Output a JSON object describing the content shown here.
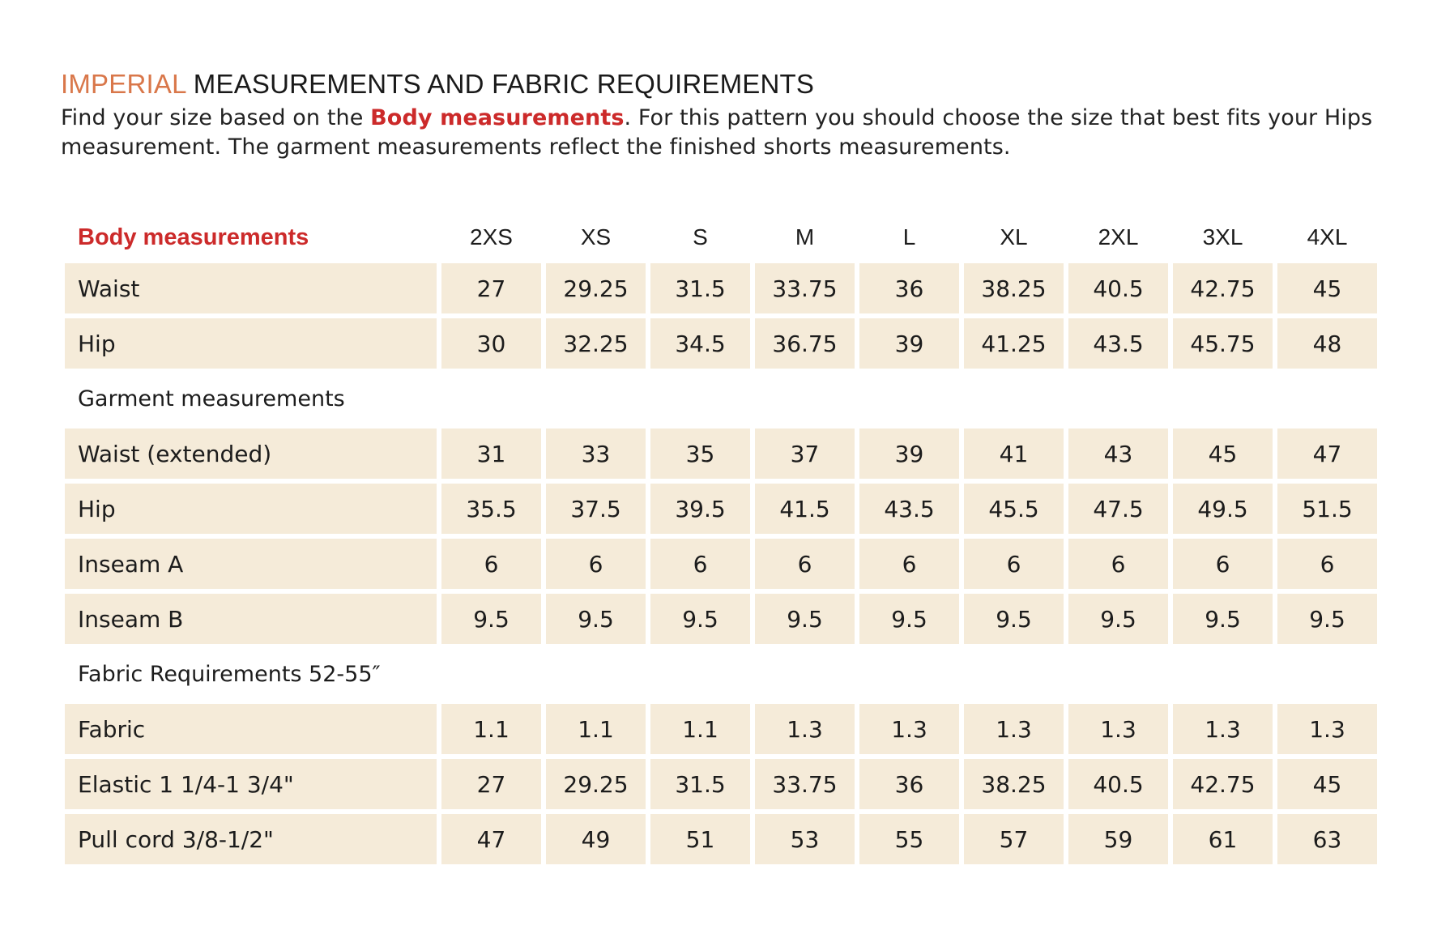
{
  "header": {
    "title_accent": "IMPERIAL",
    "title_rest": " MEASUREMENTS AND FABRIC REQUIREMENTS",
    "intro_before": "Find your size based on the ",
    "intro_bold": "Body measurements",
    "intro_after": ". For this pattern you should choose the size that best fits your Hips measurement. The garment measurements reflect the finished shorts measurements."
  },
  "table": {
    "corner_label": "Body measurements",
    "sizes": [
      "2XS",
      "XS",
      "S",
      "M",
      "L",
      "XL",
      "2XL",
      "3XL",
      "4XL"
    ],
    "body_rows": [
      {
        "label": "Waist",
        "values": [
          "27",
          "29.25",
          "31.5",
          "33.75",
          "36",
          "38.25",
          "40.5",
          "42.75",
          "45"
        ]
      },
      {
        "label": "Hip",
        "values": [
          "30",
          "32.25",
          "34.5",
          "36.75",
          "39",
          "41.25",
          "43.5",
          "45.75",
          "48"
        ]
      }
    ],
    "garment_label": "Garment measurements",
    "garment_rows": [
      {
        "label": "Waist (extended)",
        "values": [
          "31",
          "33",
          "35",
          "37",
          "39",
          "41",
          "43",
          "45",
          "47"
        ]
      },
      {
        "label": "Hip",
        "values": [
          "35.5",
          "37.5",
          "39.5",
          "41.5",
          "43.5",
          "45.5",
          "47.5",
          "49.5",
          "51.5"
        ]
      },
      {
        "label": "Inseam A",
        "values": [
          "6",
          "6",
          "6",
          "6",
          "6",
          "6",
          "6",
          "6",
          "6"
        ]
      },
      {
        "label": "Inseam B",
        "values": [
          "9.5",
          "9.5",
          "9.5",
          "9.5",
          "9.5",
          "9.5",
          "9.5",
          "9.5",
          "9.5"
        ]
      }
    ],
    "fabric_label": "Fabric Requirements 52-55″",
    "fabric_rows": [
      {
        "label": "Fabric",
        "values": [
          "1.1",
          "1.1",
          "1.1",
          "1.3",
          "1.3",
          "1.3",
          "1.3",
          "1.3",
          "1.3"
        ]
      },
      {
        "label": "Elastic 1 1/4-1 3/4\"",
        "values": [
          "27",
          "29.25",
          "31.5",
          "33.75",
          "36",
          "38.25",
          "40.5",
          "42.75",
          "45"
        ]
      },
      {
        "label": "Pull cord 3/8-1/2\"",
        "values": [
          "47",
          "49",
          "51",
          "53",
          "55",
          "57",
          "59",
          "61",
          "63"
        ]
      }
    ]
  },
  "colors": {
    "accent": "#d9774a",
    "highlight_red": "#cc2a2a",
    "cell_background": "#f5ebd9"
  }
}
